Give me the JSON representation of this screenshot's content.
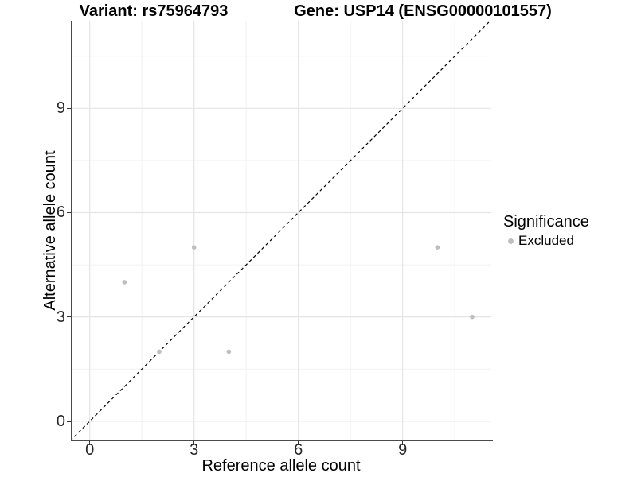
{
  "figure": {
    "title_left": "Variant: rs75964793",
    "title_right": "Gene: USP14 (ENSG00000101557)"
  },
  "legend": {
    "title": "Significance",
    "items": [
      {
        "label": "Excluded",
        "color": "#bebebe"
      }
    ]
  },
  "chart_data": {
    "type": "scatter",
    "title": "Variant: rs75964793   Gene: USP14 (ENSG00000101557)",
    "xlabel": "Reference allele count",
    "ylabel": "Alternative allele count",
    "xlim": [
      -0.52,
      11.55
    ],
    "ylim": [
      -0.53,
      11.5
    ],
    "x_major_ticks": [
      0,
      3,
      6,
      9
    ],
    "y_major_ticks": [
      0,
      3,
      6,
      9
    ],
    "x_minor_gridlines": [
      1.5,
      4.5,
      7.5,
      10.5
    ],
    "y_minor_gridlines": [
      1.5,
      4.5,
      7.5,
      10.5
    ],
    "grid": "major-and-minor",
    "legend_position": "right",
    "series": [
      {
        "name": "Excluded",
        "color": "#bebebe",
        "points": [
          {
            "x": 1,
            "y": 4
          },
          {
            "x": 2,
            "y": 2
          },
          {
            "x": 3,
            "y": 5
          },
          {
            "x": 4,
            "y": 2
          },
          {
            "x": 10,
            "y": 5
          },
          {
            "x": 11,
            "y": 3
          }
        ]
      }
    ],
    "reference_line": {
      "type": "identity",
      "slope": 1,
      "intercept": 0,
      "style": "dashed",
      "color": "#000000"
    },
    "colors": {
      "grid_major": "#e4e4e4",
      "grid_minor": "#f2f2f2",
      "axis_line": "#4a4a4a",
      "point": "#bebebe"
    }
  }
}
